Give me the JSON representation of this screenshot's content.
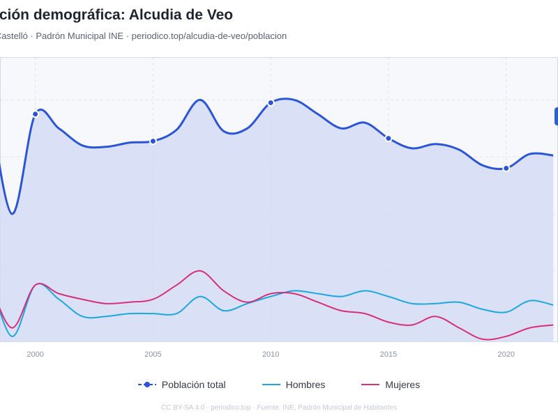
{
  "header": {
    "title": "ución demográfica: Alcudia de Veo",
    "subtitle": "n/Castelló · Padrón Municipal INE · periodico.top/alcudia-de-veo/poblacion"
  },
  "legend": {
    "items": [
      {
        "label": "Población total",
        "color": "#2a55d6",
        "style": "line-dot"
      },
      {
        "label": "Hombres",
        "color": "#1ba8e0",
        "style": "line"
      },
      {
        "label": "Mujeres",
        "color": "#d6307a",
        "style": "line"
      }
    ]
  },
  "footer": {
    "text": "CC BY-SA 4.0 · periodico.top · Fuente: INE, Padrón Municipal de Habitantes"
  },
  "colors": {
    "total": "#2a55d6",
    "total_fill": "#d5dcf5",
    "hombres": "#1ba8e0",
    "mujeres": "#d6307a",
    "grid": "#dfe4ee",
    "plot_bg": "#f7f8fc",
    "tooltip": "#2a5fd0"
  },
  "chart_data": {
    "type": "line",
    "title": "",
    "xlabel": "",
    "ylabel": "",
    "x_ticks": [
      2000,
      2005,
      2010,
      2015,
      2020
    ],
    "xlim": [
      1998.5,
      2022.2
    ],
    "ylim": [
      10,
      210
    ],
    "grid": true,
    "legend_position": "bottom",
    "x": [
      1998,
      1999,
      2000,
      2001,
      2002,
      2003,
      2004,
      2005,
      2006,
      2007,
      2008,
      2009,
      2010,
      2011,
      2012,
      2013,
      2014,
      2015,
      2016,
      2017,
      2018,
      2019,
      2020,
      2021,
      2022
    ],
    "series": [
      {
        "name": "Población total",
        "values": [
          185,
          100,
          170,
          160,
          148,
          147,
          150,
          151,
          159,
          180,
          158,
          160,
          178,
          180,
          170,
          160,
          164,
          153,
          146,
          149,
          145,
          134,
          132,
          142,
          141
        ],
        "markers": [
          2000,
          2005,
          2010,
          2015,
          2020
        ]
      },
      {
        "name": "Hombres",
        "values": [
          60,
          14,
          50,
          40,
          28,
          28,
          30,
          30,
          30,
          42,
          32,
          37,
          42,
          46,
          44,
          42,
          46,
          42,
          37,
          37,
          38,
          33,
          31,
          39,
          36
        ]
      },
      {
        "name": "Mujeres",
        "values": [
          55,
          20,
          50,
          44,
          40,
          37,
          38,
          40,
          50,
          60,
          46,
          38,
          44,
          44,
          38,
          32,
          30,
          24,
          22,
          28,
          20,
          12,
          14,
          20,
          22
        ]
      }
    ]
  }
}
